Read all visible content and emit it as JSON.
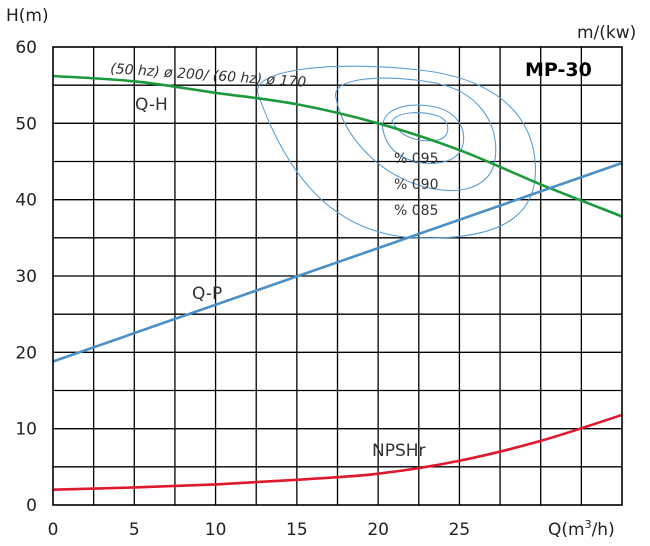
{
  "chart_data": {
    "type": "line",
    "model": "MP-30",
    "ylabel": "H(m)",
    "y2label": "m/(kw)",
    "xlabel_main": "Q(m",
    "xlabel_sup": "3",
    "xlabel_end": "/h)",
    "xlim": [
      0,
      35
    ],
    "ylim": [
      0,
      60
    ],
    "xticks": [
      "0",
      "5",
      "10",
      "15",
      "20",
      "25"
    ],
    "yticks": [
      "0",
      "10",
      "20",
      "30",
      "40",
      "50",
      "60"
    ],
    "grid": true,
    "annotation": "(50 hz) ø 200/ (60 hz) ø 170",
    "colors": {
      "qh": "#1a9a3a",
      "qp": "#4a8fc6",
      "npshr": "#e0182d",
      "efficiency": "#5a9fd4",
      "grid": "#000000"
    },
    "series": [
      {
        "name": "Q-H",
        "x": [
          0,
          5,
          10,
          15,
          20,
          25,
          30,
          35
        ],
        "y": [
          56.2,
          55.5,
          54,
          52.5,
          50,
          46.5,
          42,
          37.8
        ]
      },
      {
        "name": "Q-P",
        "x": [
          0,
          35
        ],
        "y": [
          18.8,
          44.8
        ]
      },
      {
        "name": "NPSHr",
        "x": [
          0,
          5,
          10,
          15,
          20,
          25,
          30,
          35
        ],
        "y": [
          2,
          2.3,
          2.7,
          3.3,
          4.1,
          5.8,
          8.4,
          11.8
        ]
      }
    ],
    "efficiency_labels": [
      "% 095",
      "% 090",
      "% 085"
    ]
  }
}
